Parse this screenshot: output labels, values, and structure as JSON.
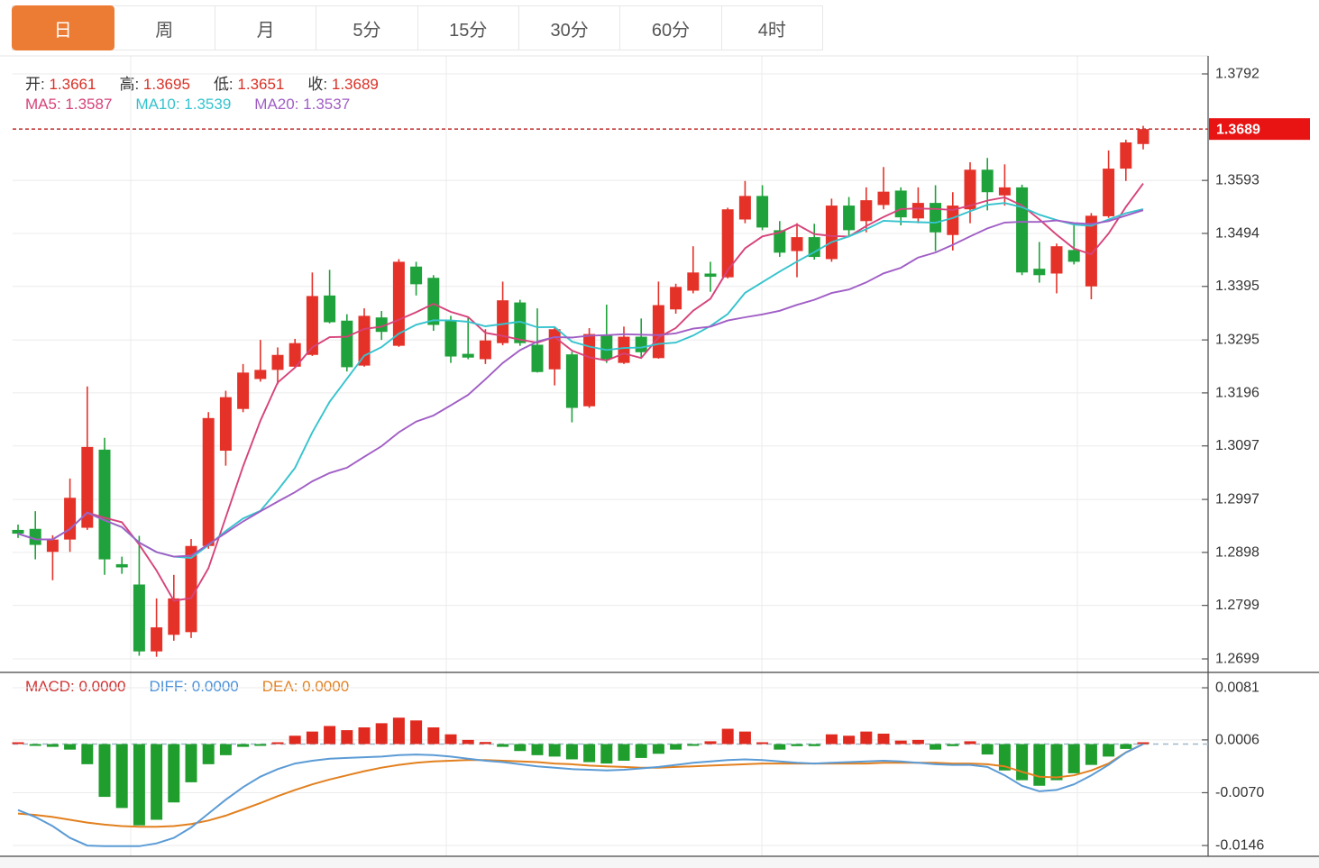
{
  "tabs": [
    {
      "id": "day",
      "label": "日",
      "active": true
    },
    {
      "id": "week",
      "label": "周",
      "active": false
    },
    {
      "id": "month",
      "label": "月",
      "active": false
    },
    {
      "id": "5min",
      "label": "5分",
      "active": false
    },
    {
      "id": "15min",
      "label": "15分",
      "active": false
    },
    {
      "id": "30min",
      "label": "30分",
      "active": false
    },
    {
      "id": "60min",
      "label": "60分",
      "active": false
    },
    {
      "id": "4hour",
      "label": "4时",
      "active": false
    }
  ],
  "ohlc_legend": {
    "items": [
      {
        "label": "开:",
        "value": "1.3661"
      },
      {
        "label": "高:",
        "value": "1.3695"
      },
      {
        "label": "低:",
        "value": "1.3651"
      },
      {
        "label": "收:",
        "value": "1.3689"
      }
    ],
    "value_color": "#d93025",
    "label_color": "#333333"
  },
  "ma_legend": {
    "items": [
      {
        "label": "MA5:",
        "value": "1.3587",
        "color": "#d6437a"
      },
      {
        "label": "MA10:",
        "value": "1.3539",
        "color": "#36c3ce"
      },
      {
        "label": "MA20:",
        "value": "1.3537",
        "color": "#a05ec5"
      }
    ]
  },
  "macd_legend": {
    "items": [
      {
        "label": "MACD:",
        "value": "0.0000",
        "color": "#cf2f2f"
      },
      {
        "label": "DIFF:",
        "value": "0.0000",
        "color": "#4a90d9"
      },
      {
        "label": "DEA:",
        "value": "0.0000",
        "color": "#e2801f"
      }
    ]
  },
  "colors": {
    "up_candle": "#e53229",
    "down_candle": "#1fa23b",
    "ma5": "#d6437a",
    "ma10": "#36c3ce",
    "ma20": "#a05ec5",
    "diff_line": "#5b9bd5",
    "dea_line": "#e2801f",
    "macd_up_bar": "#e02a1f",
    "macd_down_bar": "#1f9e2e",
    "grid": "#ebebeb",
    "axis_line": "#555555",
    "tick_text": "#333333",
    "tab_active": "#ec7c33",
    "badge_bg": "#e81414",
    "badge_text": "#ffffff",
    "current_price_line": "#c23a3a",
    "macd_zero_dash": "#9fb8cc"
  },
  "chart_data": {
    "type": "candlestick",
    "title": "",
    "panes": [
      "price",
      "macd"
    ],
    "legend_position": "top-left",
    "grid": true,
    "price_axis": {
      "ylim": [
        1.2699,
        1.3792
      ],
      "ticks": [
        {
          "label": "1.3792",
          "value": 1.3792
        },
        {
          "label": "1.3593",
          "value": 1.3593
        },
        {
          "label": "1.3494",
          "value": 1.3494
        },
        {
          "label": "1.3395",
          "value": 1.3395
        },
        {
          "label": "1.3295",
          "value": 1.3295
        },
        {
          "label": "1.3196",
          "value": 1.3196
        },
        {
          "label": "1.3097",
          "value": 1.3097
        },
        {
          "label": "1.2997",
          "value": 1.2997
        },
        {
          "label": "1.2898",
          "value": 1.2898
        },
        {
          "label": "1.2799",
          "value": 1.2799
        },
        {
          "label": "1.2699",
          "value": 1.2699
        }
      ],
      "current_price": {
        "label": "1.3689",
        "value": 1.3689
      }
    },
    "macd_axis": {
      "ylim": [
        -0.0146,
        0.0081
      ],
      "ticks": [
        {
          "label": "0.0081",
          "value": 0.0081
        },
        {
          "label": "0.0006",
          "value": 0.0006
        },
        {
          "label": "-0.0070",
          "value": -0.007
        },
        {
          "label": "-0.0146",
          "value": -0.0146
        }
      ]
    },
    "last_bar": {
      "open": 1.3661,
      "high": 1.3695,
      "low": 1.3651,
      "close": 1.3689
    },
    "ma_periods": [
      5,
      10,
      20
    ],
    "ma_last_values": {
      "ma5": 1.3587,
      "ma10": 1.3539,
      "ma20": 1.3537
    },
    "candles_format": [
      "open",
      "high",
      "low",
      "close"
    ],
    "candles": [
      [
        1.294,
        1.295,
        1.2925,
        1.2933
      ],
      [
        1.2942,
        1.2975,
        1.2885,
        1.2912
      ],
      [
        1.2899,
        1.293,
        1.2846,
        1.2922
      ],
      [
        1.2922,
        1.3036,
        1.2899,
        1.3
      ],
      [
        1.2944,
        1.3208,
        1.294,
        1.3095
      ],
      [
        1.309,
        1.3112,
        1.2856,
        1.2885
      ],
      [
        1.2876,
        1.289,
        1.2858,
        1.287
      ],
      [
        1.2838,
        1.2929,
        1.2705,
        1.2713
      ],
      [
        1.2713,
        1.2812,
        1.2703,
        1.2758
      ],
      [
        1.2744,
        1.2856,
        1.2733,
        1.2812
      ],
      [
        1.2749,
        1.2923,
        1.2738,
        1.291
      ],
      [
        1.291,
        1.316,
        1.2905,
        1.3149
      ],
      [
        1.3088,
        1.32,
        1.306,
        1.3188
      ],
      [
        1.3166,
        1.325,
        1.316,
        1.3234
      ],
      [
        1.3222,
        1.3295,
        1.3217,
        1.3239
      ],
      [
        1.3239,
        1.3281,
        1.3212,
        1.3267
      ],
      [
        1.3245,
        1.3297,
        1.3243,
        1.3289
      ],
      [
        1.3267,
        1.3421,
        1.3265,
        1.3377
      ],
      [
        1.3378,
        1.3426,
        1.3326,
        1.3328
      ],
      [
        1.3331,
        1.3343,
        1.3236,
        1.3244
      ],
      [
        1.3247,
        1.3354,
        1.3245,
        1.334
      ],
      [
        1.3337,
        1.3349,
        1.3295,
        1.331
      ],
      [
        1.3284,
        1.3446,
        1.3282,
        1.3441
      ],
      [
        1.3432,
        1.3441,
        1.3378,
        1.3399
      ],
      [
        1.3411,
        1.3416,
        1.3312,
        1.3323
      ],
      [
        1.3331,
        1.334,
        1.3252,
        1.3264
      ],
      [
        1.3269,
        1.3337,
        1.3259,
        1.3262
      ],
      [
        1.3259,
        1.3315,
        1.325,
        1.3294
      ],
      [
        1.3289,
        1.3404,
        1.3285,
        1.3369
      ],
      [
        1.3365,
        1.337,
        1.3284,
        1.3289
      ],
      [
        1.3286,
        1.3354,
        1.3234,
        1.3235
      ],
      [
        1.324,
        1.332,
        1.321,
        1.3315
      ],
      [
        1.3268,
        1.3273,
        1.3141,
        1.3168
      ],
      [
        1.3171,
        1.3317,
        1.3168,
        1.3306
      ],
      [
        1.3303,
        1.3361,
        1.3252,
        1.3259
      ],
      [
        1.3252,
        1.332,
        1.325,
        1.3301
      ],
      [
        1.3301,
        1.3335,
        1.326,
        1.3272
      ],
      [
        1.3261,
        1.3404,
        1.326,
        1.336
      ],
      [
        1.3352,
        1.34,
        1.3344,
        1.3394
      ],
      [
        1.3387,
        1.347,
        1.3382,
        1.3421
      ],
      [
        1.3419,
        1.3441,
        1.3385,
        1.3413
      ],
      [
        1.3412,
        1.3542,
        1.341,
        1.3539
      ],
      [
        1.352,
        1.3592,
        1.3513,
        1.3564
      ],
      [
        1.3564,
        1.3584,
        1.35,
        1.3505
      ],
      [
        1.35,
        1.3517,
        1.345,
        1.3458
      ],
      [
        1.3461,
        1.3513,
        1.3412,
        1.3487
      ],
      [
        1.3487,
        1.3512,
        1.3445,
        1.345
      ],
      [
        1.3446,
        1.3559,
        1.3441,
        1.3546
      ],
      [
        1.3546,
        1.3562,
        1.3488,
        1.35
      ],
      [
        1.3517,
        1.358,
        1.3496,
        1.3556
      ],
      [
        1.3547,
        1.3618,
        1.3539,
        1.3572
      ],
      [
        1.3574,
        1.358,
        1.3509,
        1.3524
      ],
      [
        1.3522,
        1.358,
        1.3513,
        1.3551
      ],
      [
        1.3551,
        1.3584,
        1.3461,
        1.3496
      ],
      [
        1.3491,
        1.3571,
        1.3462,
        1.3546
      ],
      [
        1.3539,
        1.3627,
        1.3513,
        1.3613
      ],
      [
        1.3613,
        1.3635,
        1.3537,
        1.3571
      ],
      [
        1.3565,
        1.3623,
        1.3546,
        1.358
      ],
      [
        1.358,
        1.3585,
        1.3416,
        1.3421
      ],
      [
        1.3428,
        1.3478,
        1.3402,
        1.3416
      ],
      [
        1.3419,
        1.3475,
        1.3382,
        1.347
      ],
      [
        1.3463,
        1.3509,
        1.3436,
        1.3441
      ],
      [
        1.3395,
        1.3532,
        1.3371,
        1.3527
      ],
      [
        1.3526,
        1.3649,
        1.3523,
        1.3615
      ],
      [
        1.3615,
        1.3669,
        1.3592,
        1.3664
      ],
      [
        1.3661,
        1.3695,
        1.3651,
        1.3689
      ]
    ],
    "macd": {
      "hist": [
        0.0001,
        -0.0002,
        -0.0004,
        -0.0008,
        -0.0029,
        -0.0076,
        -0.0092,
        -0.0117,
        -0.0109,
        -0.0084,
        -0.0055,
        -0.0029,
        -0.0016,
        -0.0004,
        -0.0002,
        0.0001,
        0.0012,
        0.0018,
        0.0026,
        0.002,
        0.0024,
        0.003,
        0.0038,
        0.0034,
        0.0024,
        0.0014,
        0.0006,
        0.0003,
        -0.0004,
        -0.001,
        -0.0016,
        -0.0018,
        -0.0022,
        -0.0026,
        -0.0028,
        -0.0024,
        -0.002,
        -0.0014,
        -0.0008,
        -0.0002,
        0.0004,
        0.0022,
        0.0018,
        0.0002,
        -0.0008,
        -0.0003,
        -0.0003,
        0.0014,
        0.0012,
        0.0018,
        0.0015,
        0.0005,
        0.0006,
        -0.0008,
        -0.0003,
        0.0004,
        -0.0015,
        -0.0038,
        -0.0052,
        -0.006,
        -0.0052,
        -0.0042,
        -0.003,
        -0.0018,
        -0.0007,
        0.0001
      ],
      "diff": [
        -0.0095,
        -0.0105,
        -0.0118,
        -0.0135,
        -0.0146,
        -0.0147,
        -0.0147,
        -0.0147,
        -0.0143,
        -0.0135,
        -0.012,
        -0.01,
        -0.008,
        -0.0062,
        -0.0047,
        -0.0036,
        -0.0028,
        -0.0024,
        -0.0021,
        -0.002,
        -0.0019,
        -0.0018,
        -0.0016,
        -0.0015,
        -0.0016,
        -0.0018,
        -0.0021,
        -0.0024,
        -0.0026,
        -0.0029,
        -0.0032,
        -0.0034,
        -0.0036,
        -0.0037,
        -0.0038,
        -0.0037,
        -0.0035,
        -0.0033,
        -0.003,
        -0.0027,
        -0.0025,
        -0.0023,
        -0.0022,
        -0.0023,
        -0.0025,
        -0.0027,
        -0.0028,
        -0.0027,
        -0.0026,
        -0.0025,
        -0.0024,
        -0.0025,
        -0.0027,
        -0.0029,
        -0.003,
        -0.003,
        -0.0033,
        -0.0045,
        -0.006,
        -0.0068,
        -0.0066,
        -0.0058,
        -0.0045,
        -0.003,
        -0.0012,
        0.0
      ],
      "dea": [
        -0.01,
        -0.0102,
        -0.0105,
        -0.0109,
        -0.0113,
        -0.0116,
        -0.0118,
        -0.0119,
        -0.0119,
        -0.0118,
        -0.0115,
        -0.011,
        -0.0103,
        -0.0094,
        -0.0085,
        -0.0075,
        -0.0066,
        -0.0058,
        -0.0051,
        -0.0045,
        -0.0039,
        -0.0034,
        -0.003,
        -0.0027,
        -0.0025,
        -0.0024,
        -0.0023,
        -0.0023,
        -0.0024,
        -0.0025,
        -0.0026,
        -0.0028,
        -0.0029,
        -0.0031,
        -0.0032,
        -0.0033,
        -0.0034,
        -0.0034,
        -0.0033,
        -0.0032,
        -0.0031,
        -0.003,
        -0.0029,
        -0.0028,
        -0.0028,
        -0.0028,
        -0.0028,
        -0.0028,
        -0.0028,
        -0.0028,
        -0.0027,
        -0.0027,
        -0.0027,
        -0.0027,
        -0.0028,
        -0.0028,
        -0.0029,
        -0.0032,
        -0.004,
        -0.0047,
        -0.0048,
        -0.0045,
        -0.0038,
        -0.0028,
        -0.0012,
        0.0
      ]
    }
  }
}
